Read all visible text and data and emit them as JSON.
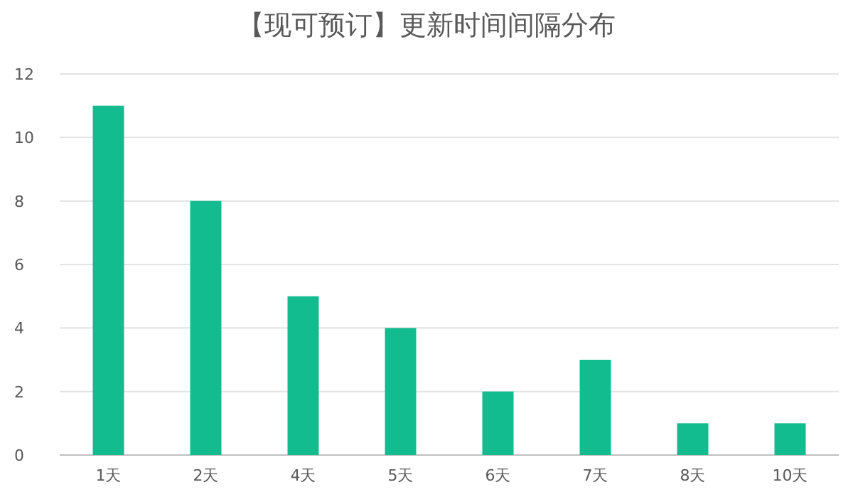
{
  "chart_data": {
    "type": "bar",
    "title": "【现可预订】更新时间间隔分布",
    "categories": [
      "1天",
      "2天",
      "4天",
      "5天",
      "6天",
      "7天",
      "8天",
      "10天"
    ],
    "values": [
      11,
      8,
      5,
      4,
      2,
      3,
      1,
      1
    ],
    "color": "#12bc8f",
    "ylim": [
      0,
      12
    ],
    "yticks": [
      0,
      2,
      4,
      6,
      8,
      10,
      12
    ],
    "grid": "y"
  }
}
